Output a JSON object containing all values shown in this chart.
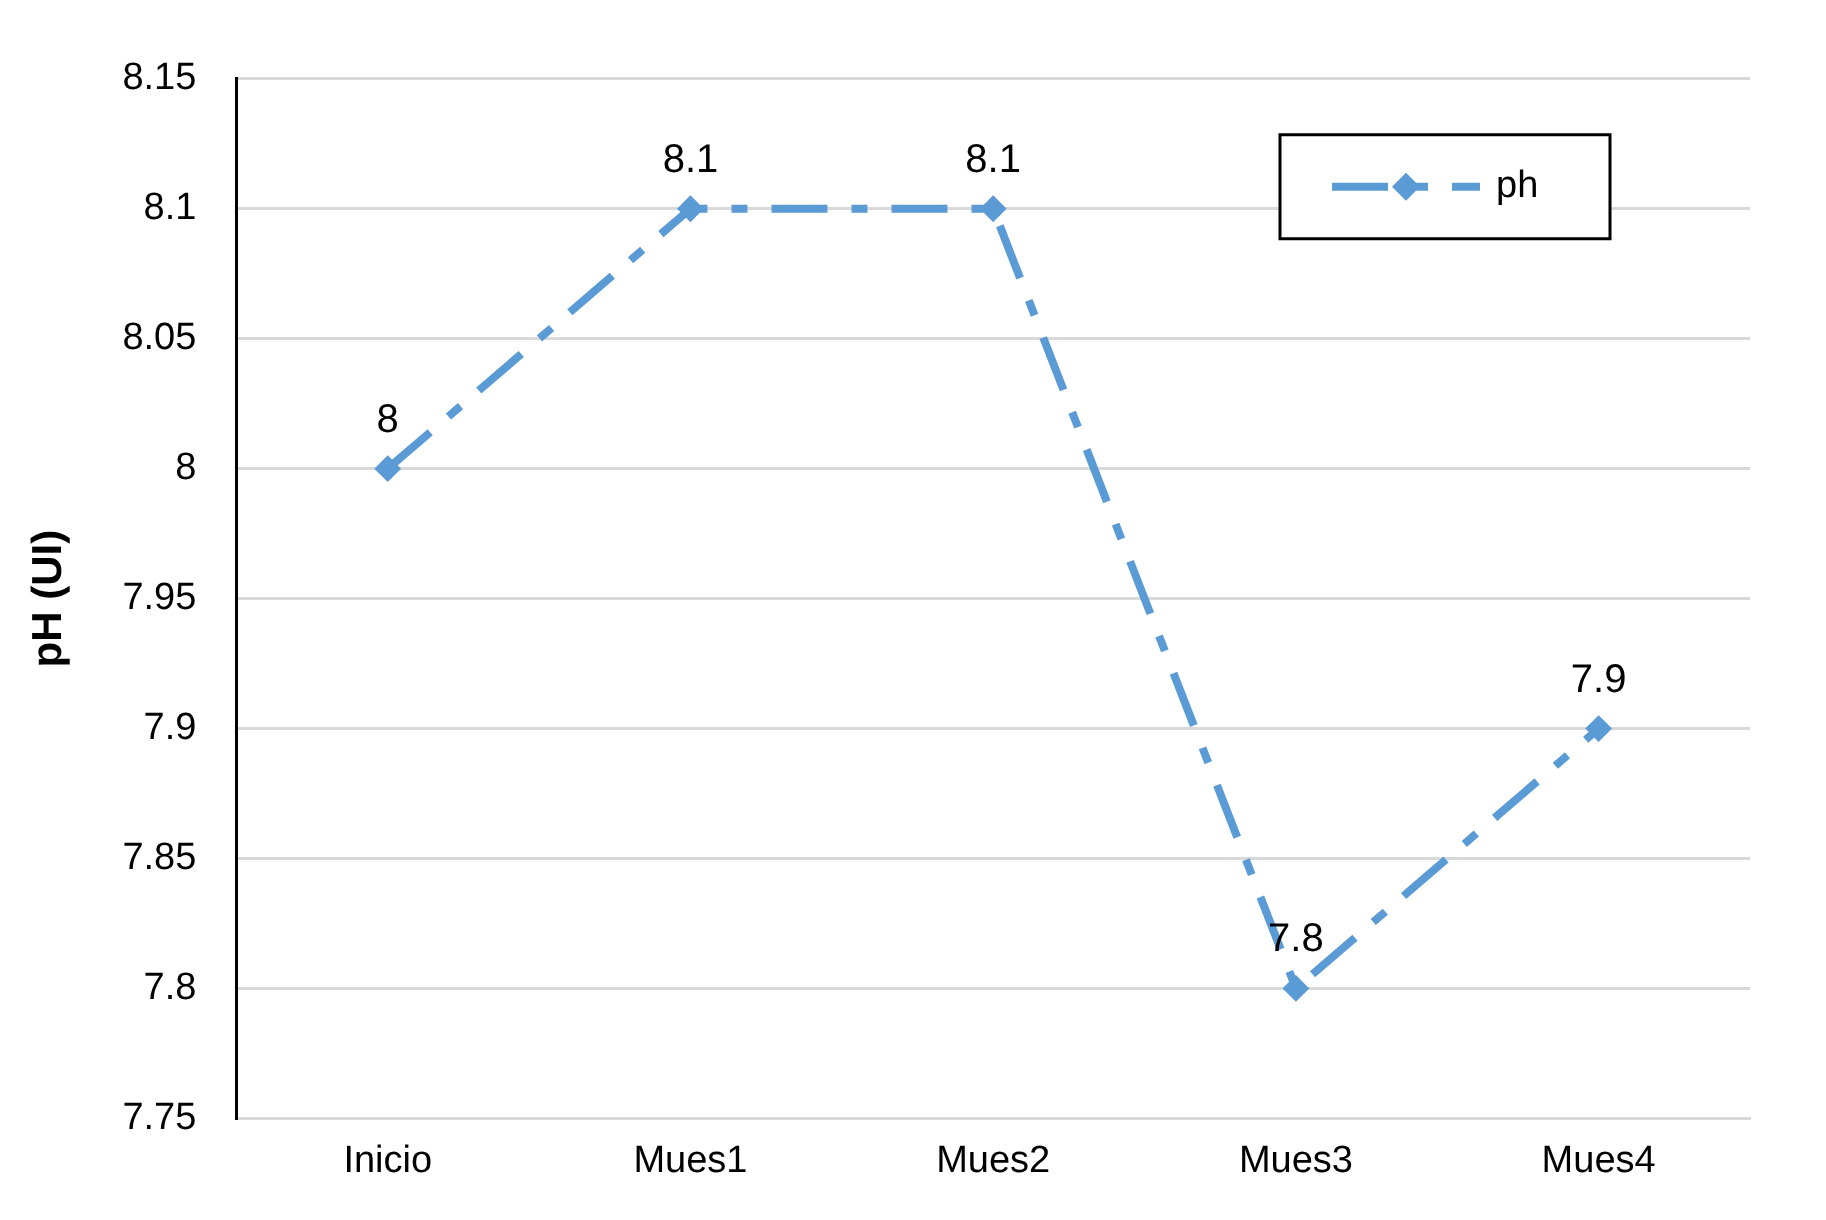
{
  "chart_data": {
    "type": "line",
    "ylabel": "pH (UI)",
    "categories": [
      "Inicio",
      "Mues1",
      "Mues2",
      "Mues3",
      "Mues4"
    ],
    "series": [
      {
        "name": "ph",
        "color": "#5b9bd5",
        "values": [
          8,
          8.1,
          8.1,
          7.8,
          7.9
        ]
      }
    ],
    "ylim": [
      7.75,
      8.15
    ],
    "yticks": [
      7.75,
      7.8,
      7.85,
      7.9,
      7.95,
      8,
      8.05,
      8.1,
      8.15
    ],
    "grid": "y",
    "legend": "top right",
    "marker": "diamond",
    "line_style": "dashed",
    "data_labels": true
  }
}
